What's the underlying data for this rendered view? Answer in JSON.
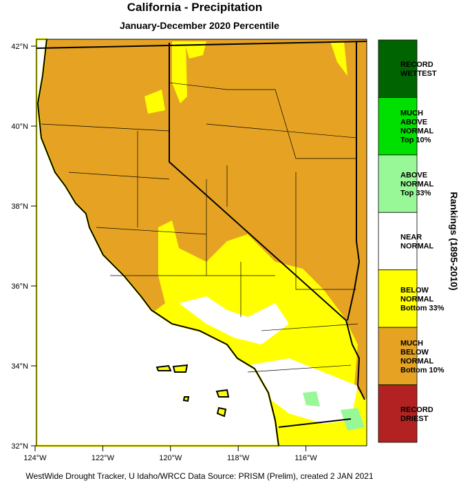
{
  "header": {
    "title": "California - Precipitation",
    "subtitle": "January-December 2020 Percentile"
  },
  "map": {
    "lat_ticks": [
      {
        "value": 42,
        "label": "42°N"
      },
      {
        "value": 40,
        "label": "40°N"
      },
      {
        "value": 38,
        "label": "38°N"
      },
      {
        "value": 36,
        "label": "36°N"
      },
      {
        "value": 34,
        "label": "34°N"
      },
      {
        "value": 32,
        "label": "32°N"
      }
    ],
    "lon_ticks": [
      {
        "value": -124,
        "label": "124°W"
      },
      {
        "value": -122,
        "label": "122°W"
      },
      {
        "value": -120,
        "label": "120°W"
      },
      {
        "value": -118,
        "label": "118°W"
      },
      {
        "value": -116,
        "label": "116°W"
      }
    ]
  },
  "legend": {
    "title": "Rankings (1895-2010)",
    "items": [
      {
        "lines": [
          "RECORD",
          "WETTEST"
        ],
        "color": "#006400"
      },
      {
        "lines": [
          "MUCH",
          "ABOVE",
          "NORMAL",
          "Top 10%"
        ],
        "color": "#00e000"
      },
      {
        "lines": [
          "ABOVE",
          "NORMAL",
          "Top 33%"
        ],
        "color": "#98f898"
      },
      {
        "lines": [
          "NEAR",
          "NORMAL"
        ],
        "color": "#ffffff"
      },
      {
        "lines": [
          "BELOW",
          "NORMAL",
          "Bottom 33%"
        ],
        "color": "#ffff00"
      },
      {
        "lines": [
          "MUCH",
          "BELOW",
          "NORMAL",
          "Bottom 10%"
        ],
        "color": "#e6a323"
      },
      {
        "lines": [
          "RECORD",
          "DRIEST"
        ],
        "color": "#b22222"
      }
    ]
  },
  "footer": "WestWide Drought Tracker, U Idaho/WRCC Data Source: PRISM (Prelim), created  2 JAN 2021"
}
